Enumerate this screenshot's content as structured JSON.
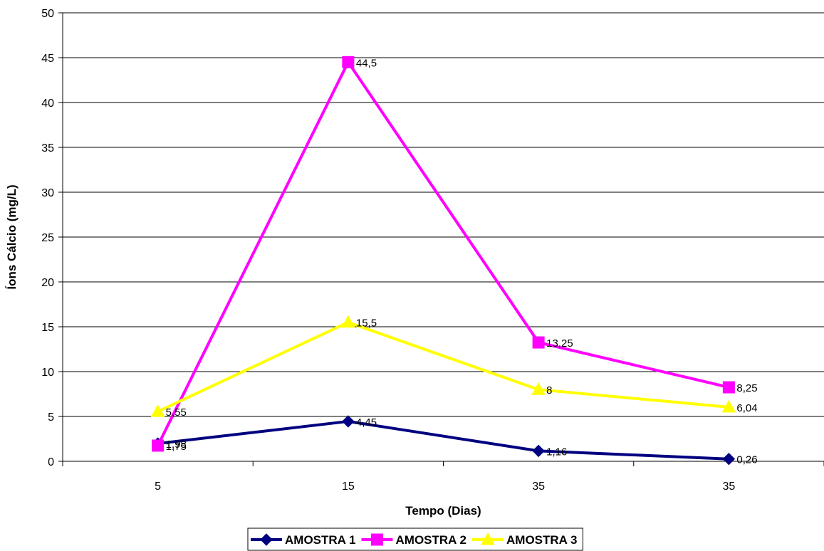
{
  "chart_data": {
    "type": "line",
    "title": "",
    "xlabel": "Tempo (Dias)",
    "ylabel": "Íons Cálcio (mg/L)",
    "categories": [
      "5",
      "15",
      "35",
      "35"
    ],
    "ylim": [
      0,
      50
    ],
    "yticks": [
      0,
      5,
      10,
      15,
      20,
      25,
      30,
      35,
      40,
      45,
      50
    ],
    "grid": true,
    "legend_position": "bottom",
    "series": [
      {
        "name": "AMOSTRA 1",
        "color": "#000080",
        "marker": "diamond",
        "values": [
          1.98,
          4.45,
          1.16,
          0.26
        ],
        "labels": [
          "1,98",
          "4,45",
          "1,16",
          "0,26"
        ]
      },
      {
        "name": "AMOSTRA 2",
        "color": "#ff00ff",
        "marker": "square",
        "values": [
          1.75,
          44.5,
          13.25,
          8.25
        ],
        "labels": [
          "1,75",
          "44,5",
          "13,25",
          "8,25"
        ]
      },
      {
        "name": "AMOSTRA 3",
        "color": "#ffff00",
        "marker": "triangle",
        "values": [
          5.55,
          15.5,
          8,
          6.04
        ],
        "labels": [
          "5,55",
          "15,5",
          "8",
          "6,04"
        ]
      }
    ]
  }
}
